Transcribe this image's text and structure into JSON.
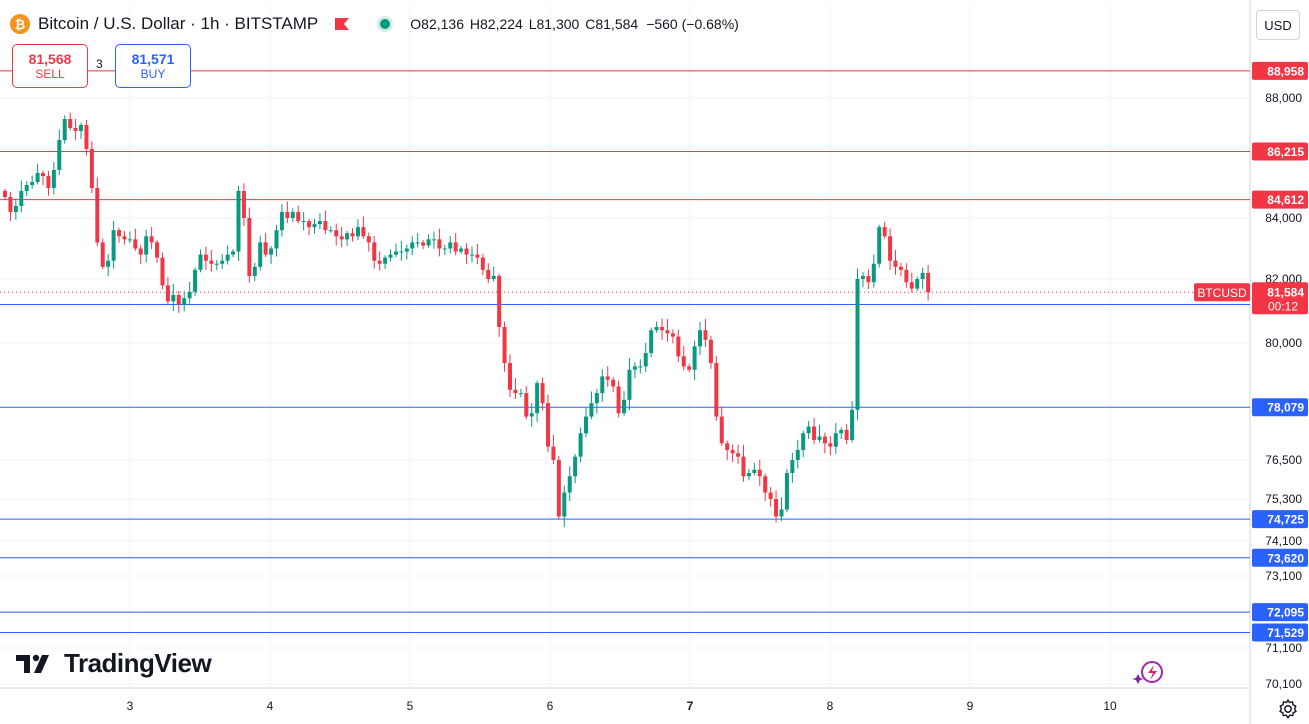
{
  "header": {
    "symbol_title": "Bitcoin / U.S. Dollar · 1h · BITSTAMP",
    "coin_glyph": "₿",
    "ohlc": {
      "o_label": "O",
      "o": "82,136",
      "h_label": "H",
      "h": "82,224",
      "l_label": "L",
      "l": "81,300",
      "c_label": "C",
      "c": "81,584"
    },
    "change": "−560 (−0.68%)"
  },
  "trade": {
    "sell_price": "81,568",
    "sell_label": "SELL",
    "spread": "3",
    "buy_price": "81,571",
    "buy_label": "BUY"
  },
  "currency": "USD",
  "branding": {
    "logo_text": "TradingView"
  },
  "chart_data": {
    "type": "candlestick",
    "timeframe": "1h",
    "symbol": "BTCUSD",
    "y_axis_ticks": [
      "88,000",
      "84,000",
      "82,000",
      "80,000",
      "76,500",
      "75,300",
      "74,100",
      "73,100",
      "71,100",
      "70,100"
    ],
    "x_axis_ticks": [
      "3",
      "4",
      "5",
      "6",
      "7",
      "8",
      "9",
      "10"
    ],
    "x_axis_bold": "7",
    "price_lines": [
      {
        "label": "88,958",
        "value": 88958,
        "color": "#f23645"
      },
      {
        "label": "86,215",
        "value": 86215,
        "color": "#f23645"
      },
      {
        "label": "84,612",
        "value": 84612,
        "color": "#f23645"
      },
      {
        "label": "81,203",
        "value": 81203,
        "color": "#2962ff"
      },
      {
        "label": "78,079",
        "value": 78079,
        "color": "#2962ff"
      },
      {
        "label": "74,725",
        "value": 74725,
        "color": "#2962ff"
      },
      {
        "label": "73,620",
        "value": 73620,
        "color": "#2962ff"
      },
      {
        "label": "72,095",
        "value": 72095,
        "color": "#2962ff"
      },
      {
        "label": "71,529",
        "value": 71529,
        "color": "#2962ff"
      }
    ],
    "last_price": {
      "symbol": "BTCUSD",
      "value": "81,584",
      "countdown": "00:12",
      "color": "#f23645"
    },
    "up_color": "#089981",
    "down_color": "#f23645",
    "closes": [
      84700,
      84200,
      84400,
      84900,
      85100,
      85200,
      85500,
      85400,
      85000,
      85600,
      86600,
      87300,
      87000,
      86900,
      87100,
      86300,
      85000,
      83200,
      82400,
      82600,
      83600,
      83400,
      83300,
      83300,
      83000,
      82800,
      83400,
      83200,
      82700,
      81800,
      81300,
      81500,
      81200,
      81400,
      81600,
      82300,
      82800,
      82600,
      82500,
      82500,
      82600,
      82800,
      82900,
      84900,
      84000,
      82100,
      82400,
      83200,
      82800,
      83000,
      83600,
      84200,
      84000,
      84200,
      83900,
      83900,
      83700,
      83800,
      83900,
      83600,
      83600,
      83400,
      83300,
      83500,
      83400,
      83700,
      83400,
      83200,
      82600,
      82500,
      82700,
      82800,
      82900,
      82900,
      83000,
      83200,
      83200,
      83100,
      83300,
      83300,
      83000,
      83000,
      83200,
      82900,
      83000,
      82800,
      82800,
      82700,
      82300,
      82000,
      82100,
      80500,
      79400,
      78600,
      78500,
      78500,
      77800,
      77900,
      78800,
      78200,
      76900,
      76500,
      74800,
      75500,
      76000,
      76600,
      77300,
      77800,
      78200,
      78500,
      79000,
      78900,
      78700,
      77900,
      78300,
      79200,
      79300,
      79300,
      79700,
      80400,
      80500,
      80400,
      80300,
      80200,
      79600,
      79300,
      79200,
      79900,
      80400,
      80100,
      79400,
      77800,
      77000,
      76800,
      76700,
      76600,
      76000,
      76100,
      76200,
      76000,
      75500,
      75300,
      74800,
      75000,
      76100,
      76500,
      76800,
      77300,
      77500,
      77100,
      77200,
      77000,
      76900,
      77300,
      77400,
      77100,
      78000,
      82000,
      82100,
      81900,
      82500,
      83700,
      83400,
      82600,
      82400,
      82300,
      81900,
      81700,
      82000,
      82200,
      81584
    ],
    "price_range": [
      70100,
      89200
    ]
  }
}
